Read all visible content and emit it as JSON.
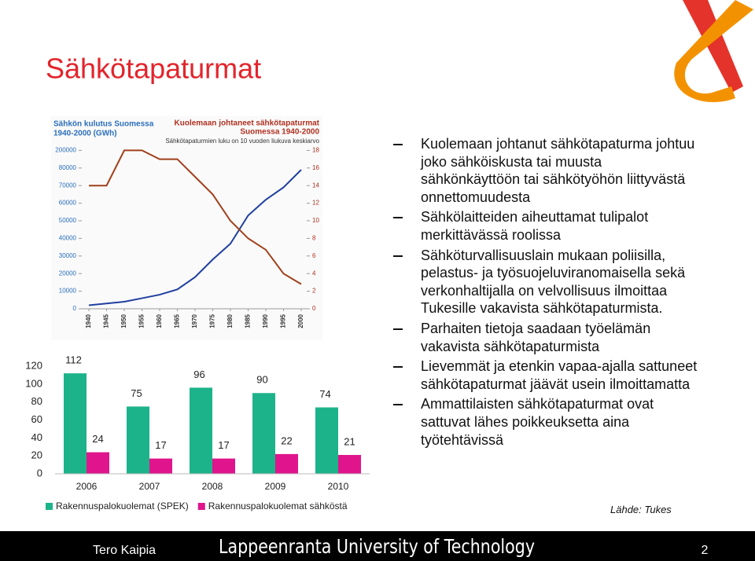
{
  "title": "Sähkötapaturmat",
  "chart_data": [
    {
      "type": "line",
      "y_label": [
        "Sähkön kulutus Suomessa",
        "1940-2000 (GWh)"
      ],
      "y2_label": [
        "Kuolemaan johtaneet sähkötapaturmat",
        "Suomessa 1940-2000"
      ],
      "subtitle": "Sähkötapaturmien luku on 10 vuoden liukuva keskiarvo",
      "x": [
        1940,
        1945,
        1950,
        1955,
        1960,
        1965,
        1970,
        1975,
        1980,
        1985,
        1990,
        1995,
        2000
      ],
      "xlim": [
        1940,
        2000
      ],
      "xticks": [
        1940,
        1945,
        1950,
        1955,
        1960,
        1965,
        1970,
        1975,
        1980,
        1985,
        1990,
        1995,
        2000
      ],
      "ylim": [
        0,
        200000
      ],
      "yticks": [
        0,
        10000,
        20000,
        30000,
        40000,
        50000,
        60000,
        70000,
        80000,
        200000
      ],
      "axis_break": true,
      "y2lim": [
        0,
        18
      ],
      "y2ticks": [
        0,
        2,
        4,
        6,
        8,
        10,
        12,
        14,
        16,
        18
      ],
      "series": [
        {
          "name": "Sähkön kulutus Suomessa",
          "color": "#1f3fa0",
          "values": [
            2000,
            3000,
            4000,
            6000,
            8000,
            11000,
            18000,
            28000,
            37000,
            53000,
            62000,
            69000,
            79000
          ]
        },
        {
          "name": "Kuolemaan johtaneet sähkötapaturmat",
          "color": "#a0401c",
          "axis": "y2",
          "values": [
            14,
            14,
            18,
            18,
            17,
            17,
            15,
            13,
            10,
            8,
            6.7,
            4,
            2.8
          ]
        }
      ]
    },
    {
      "type": "bar",
      "categories": [
        "2006",
        "2007",
        "2008",
        "2009",
        "2010"
      ],
      "ylim": [
        0,
        120
      ],
      "yticks": [
        0,
        20,
        40,
        60,
        80,
        100,
        120
      ],
      "legend": "bottom",
      "series": [
        {
          "name": "Rakennuspalokuolemat (SPEK)",
          "color": "#1db38a",
          "values": [
            112,
            75,
            96,
            90,
            74
          ]
        },
        {
          "name": "Rakennuspalokuolemat sähköstä",
          "color": "#e0148c",
          "values": [
            24,
            17,
            17,
            22,
            21
          ]
        }
      ]
    }
  ],
  "bullets": [
    "Kuolemaan johtanut sähkötapaturma johtuu joko sähköiskusta tai muusta sähkönkäyttöön tai sähkötyöhön liittyvästä onnettomuudesta",
    "Sähkölaitteiden aiheuttamat tulipalot merkittävässä roolissa",
    "Sähköturvallisuuslain mukaan poliisilla, pelastus- ja työsuojeluviranomaisella sekä verkonhaltijalla on velvollisuus ilmoittaa Tukesille vakavista sähkötapaturmista.",
    "Parhaiten tietoja saadaan työelämän vakavista sähkötapaturmista",
    "Lievemmät ja etenkin vapaa-ajalla sattuneet sähkötapaturmat jäävät usein ilmoittamatta",
    "Ammattilaisten sähkötapaturmat ovat sattuvat lähes poikkeuksetta aina työtehtävissä"
  ],
  "source": "Lähde: Tukes",
  "footer": {
    "author": "Tero Kaipia",
    "university": "Lappeenranta University of Technology",
    "page": "2"
  }
}
